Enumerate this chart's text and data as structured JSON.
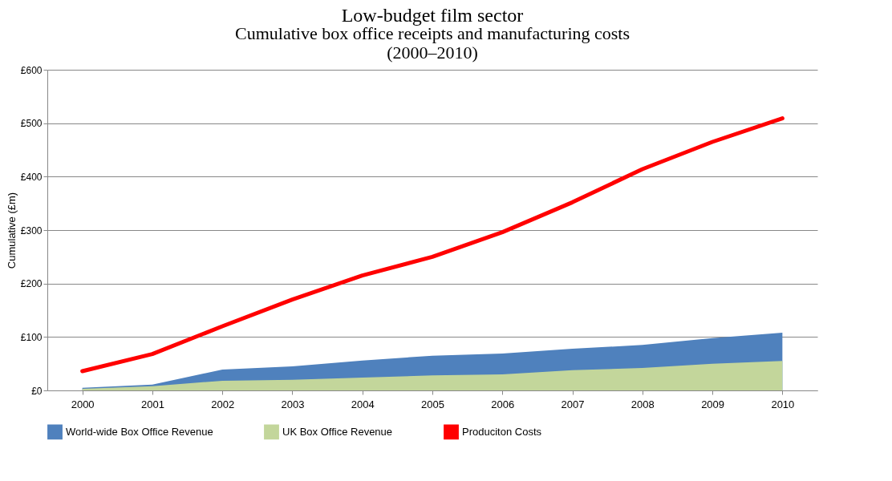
{
  "chart_data": {
    "type": "area",
    "title": "Low-budget film sector",
    "subtitle": [
      "Cumulative box office receipts and manufacturing costs",
      "(2000–2010)"
    ],
    "ylabel": "Cumulative (£m)",
    "categories": [
      "2000",
      "2001",
      "2002",
      "2003",
      "2004",
      "2005",
      "2006",
      "2007",
      "2008",
      "2009",
      "2010"
    ],
    "series": [
      {
        "name": "World-wide Box Office Revenue",
        "color": "#4f81bd",
        "values": [
          5,
          11,
          39,
          45,
          56,
          65,
          69,
          78,
          85,
          98,
          108
        ]
      },
      {
        "name": "UK Box Office Revenue",
        "color": "#c3d69b",
        "values": [
          3,
          8,
          18,
          20,
          24,
          28,
          30,
          38,
          42,
          50,
          55
        ]
      },
      {
        "name": "Produciton Costs",
        "type": "line",
        "color": "#ff0000",
        "values": [
          36,
          68,
          120,
          170,
          215,
          250,
          296,
          352,
          414,
          465,
          509
        ]
      }
    ],
    "ylim": [
      0,
      600
    ],
    "yticks": [
      {
        "value": 0,
        "label": "£0"
      },
      {
        "value": 100,
        "label": "£100"
      },
      {
        "value": 200,
        "label": "£200"
      },
      {
        "value": 300,
        "label": "£300"
      },
      {
        "value": 400,
        "label": "£400"
      },
      {
        "value": 500,
        "label": "£500"
      },
      {
        "value": 600,
        "label": "£600"
      }
    ],
    "grid": "y",
    "legend": "bottom"
  }
}
